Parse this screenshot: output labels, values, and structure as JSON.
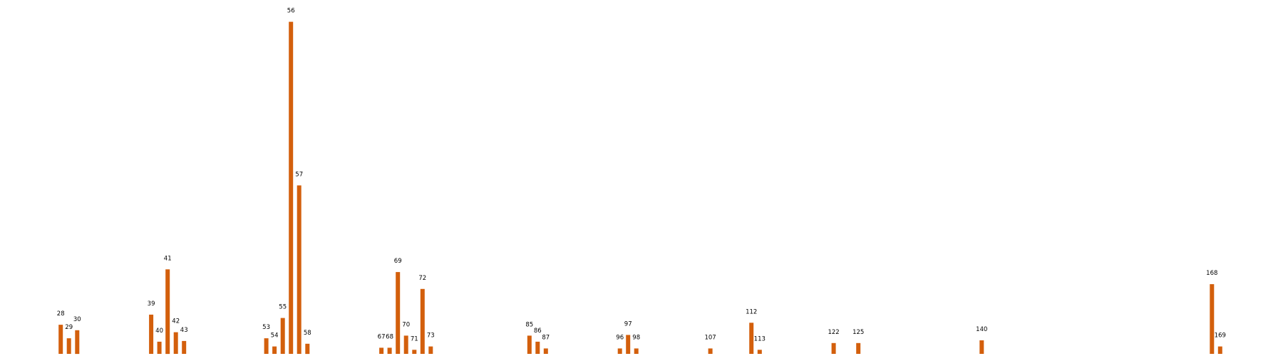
{
  "chart_data": {
    "type": "bar",
    "bar_color": "#d35f0c",
    "title": "",
    "xlabel": "",
    "ylabel": "",
    "axes_visible": false,
    "grid": false,
    "x": [
      28,
      29,
      30,
      39,
      40,
      41,
      42,
      43,
      53,
      54,
      55,
      56,
      57,
      58,
      67,
      68,
      69,
      70,
      71,
      72,
      73,
      85,
      86,
      87,
      96,
      97,
      98,
      107,
      112,
      113,
      122,
      125,
      140,
      168,
      169
    ],
    "values": [
      43,
      23,
      35,
      58,
      18,
      125,
      32,
      19,
      23,
      11,
      53,
      491,
      249,
      15,
      9,
      9,
      121,
      27,
      6,
      96,
      11,
      27,
      18,
      8,
      8,
      28,
      8,
      8,
      46,
      6,
      16,
      16,
      20,
      103,
      11
    ],
    "labels": [
      "28",
      "29",
      "30",
      "39",
      "40",
      "41",
      "42",
      "43",
      "53",
      "54",
      "55",
      "56",
      "57",
      "58",
      "67",
      "68",
      "69",
      "70",
      "71",
      "72",
      "73",
      "85",
      "86",
      "87",
      "96",
      "97",
      "98",
      "107",
      "112",
      "113",
      "122",
      "125",
      "140",
      "168",
      "169"
    ],
    "ylim": [
      0,
      500
    ]
  }
}
